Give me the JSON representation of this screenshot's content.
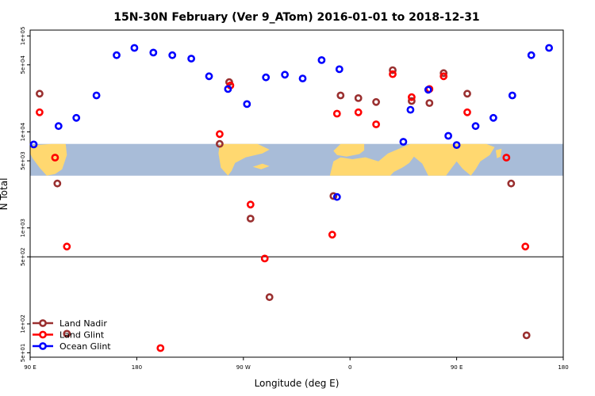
{
  "chart_data": {
    "type": "scatter",
    "title": "15N-30N February (Ver 9_ATom)   2016-01-01 to 2018-12-31",
    "xlabel": "Longitude (deg E)",
    "ylabel": "N Total",
    "x_tick_labels": [
      "90 E",
      "180",
      "90 W",
      "0",
      "90 E",
      "180"
    ],
    "x_ticks": [
      90,
      180,
      270,
      360,
      450,
      540
    ],
    "xlim": [
      90,
      540
    ],
    "y_scale": "log",
    "y_tick_labels": [
      "5e+01",
      "1e+02",
      "5e+02",
      "1e+03",
      "5e+03",
      "1e+04",
      "5e+04",
      "1e+05"
    ],
    "y_ticks": [
      50,
      100,
      500,
      1000,
      5000,
      10000,
      50000,
      100000
    ],
    "ylim": [
      45,
      115000
    ],
    "reference_line": 500,
    "map_band": [
      3500,
      7500
    ],
    "legend_position": "bottom-left",
    "colors": {
      "land_nadir": "#9a3030",
      "land_glint": "#ff0000",
      "ocean_glint": "#0000ff",
      "ocean": "#a8bcd8",
      "land": "#ffd870"
    },
    "series": [
      {
        "name": "Land Nadir",
        "color": "#9a3030",
        "points": [
          [
            98,
            25000
          ],
          [
            113,
            2900
          ],
          [
            121,
            79
          ],
          [
            250,
            7500
          ],
          [
            258,
            33000
          ],
          [
            276,
            1250
          ],
          [
            292,
            190
          ],
          [
            346,
            2150
          ],
          [
            352,
            24000
          ],
          [
            367,
            22500
          ],
          [
            382,
            20500
          ],
          [
            396,
            44000
          ],
          [
            412,
            21000
          ],
          [
            427,
            20000
          ],
          [
            439,
            41000
          ],
          [
            459,
            25000
          ],
          [
            496,
            2900
          ],
          [
            509,
            76
          ]
        ]
      },
      {
        "name": "Land Glint",
        "color": "#ff0000",
        "points": [
          [
            98,
            16000
          ],
          [
            111,
            5400
          ],
          [
            121,
            640
          ],
          [
            200,
            56
          ],
          [
            250,
            9500
          ],
          [
            259,
            30500
          ],
          [
            276,
            1750
          ],
          [
            288,
            480
          ],
          [
            345,
            850
          ],
          [
            349,
            15500
          ],
          [
            367,
            16000
          ],
          [
            382,
            12000
          ],
          [
            396,
            40000
          ],
          [
            412,
            23000
          ],
          [
            427,
            28000
          ],
          [
            439,
            38000
          ],
          [
            459,
            16000
          ],
          [
            492,
            5400
          ],
          [
            508,
            640
          ]
        ]
      },
      {
        "name": "Ocean Glint",
        "color": "#0000ff",
        "points": [
          [
            93,
            7400
          ],
          [
            114,
            11500
          ],
          [
            129,
            14000
          ],
          [
            146,
            24000
          ],
          [
            163,
            63000
          ],
          [
            178,
            75000
          ],
          [
            194,
            67000
          ],
          [
            210,
            63000
          ],
          [
            226,
            58000
          ],
          [
            241,
            38000
          ],
          [
            257,
            28000
          ],
          [
            273,
            19500
          ],
          [
            289,
            37000
          ],
          [
            305,
            39500
          ],
          [
            320,
            36000
          ],
          [
            336,
            56000
          ],
          [
            351,
            45000
          ],
          [
            349,
            2100
          ],
          [
            405,
            7900
          ],
          [
            411,
            17000
          ],
          [
            426,
            27500
          ],
          [
            443,
            9100
          ],
          [
            450,
            7300
          ],
          [
            466,
            11500
          ],
          [
            481,
            14000
          ],
          [
            497,
            24000
          ],
          [
            513,
            63000
          ],
          [
            528,
            75000
          ]
        ]
      }
    ]
  }
}
